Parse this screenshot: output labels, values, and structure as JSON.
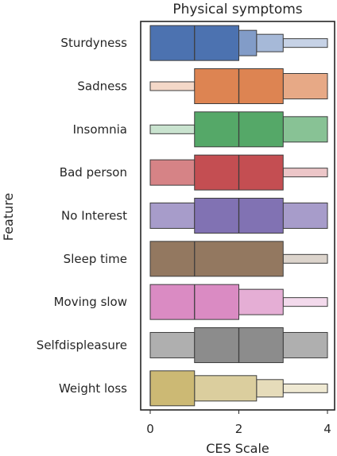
{
  "chart_data": {
    "type": "boxen",
    "title": "Physical symptoms",
    "xlabel": "CES Scale",
    "ylabel": "Feature",
    "xlim": [
      -0.2,
      4.2
    ],
    "xticks": [
      0,
      2,
      4
    ],
    "grid": false,
    "legend": "none",
    "categories": [
      "Sturdyness",
      "Sadness",
      "Insomnia",
      "Bad person",
      "No Interest",
      "Sleep time",
      "Moving slow",
      "Selfdispleasure",
      "Weight loss"
    ],
    "series": [
      {
        "category": "Sturdyness",
        "color": "#4c72b0",
        "median": 1,
        "levels": [
          {
            "low": 0,
            "high": 2,
            "shade": 0
          },
          {
            "low": 2,
            "high": 2.4,
            "shade": 1
          },
          {
            "low": 2.4,
            "high": 3,
            "shade": 2
          },
          {
            "low": 3,
            "high": 4,
            "shade": 3
          }
        ]
      },
      {
        "category": "Sadness",
        "color": "#dd8452",
        "median": 2,
        "levels": [
          {
            "low": 1,
            "high": 3,
            "shade": 0
          },
          {
            "low": 3,
            "high": 4,
            "shade": 1
          },
          {
            "low": 0,
            "high": 1,
            "shade": 3
          }
        ]
      },
      {
        "category": "Insomnia",
        "color": "#55a868",
        "median": 2,
        "levels": [
          {
            "low": 1,
            "high": 3,
            "shade": 0
          },
          {
            "low": 3,
            "high": 4,
            "shade": 1
          },
          {
            "low": 0,
            "high": 1,
            "shade": 3
          }
        ]
      },
      {
        "category": "Bad person",
        "color": "#c44e52",
        "median": 2,
        "levels": [
          {
            "low": 1,
            "high": 3,
            "shade": 0
          },
          {
            "low": 0,
            "high": 1,
            "shade": 1
          },
          {
            "low": 3,
            "high": 4,
            "shade": 3
          }
        ]
      },
      {
        "category": "No Interest",
        "color": "#8172b3",
        "median": 2,
        "levels": [
          {
            "low": 1,
            "high": 3,
            "shade": 0
          },
          {
            "low": 0,
            "high": 1,
            "shade": 1
          },
          {
            "low": 3,
            "high": 4,
            "shade": 1
          }
        ]
      },
      {
        "category": "Sleep time",
        "color": "#937860",
        "median": 1,
        "levels": [
          {
            "low": 0,
            "high": 3,
            "shade": 0
          },
          {
            "low": 3,
            "high": 4,
            "shade": 3
          }
        ]
      },
      {
        "category": "Moving slow",
        "color": "#da8bc3",
        "median": 1,
        "levels": [
          {
            "low": 0,
            "high": 2,
            "shade": 0
          },
          {
            "low": 2,
            "high": 3,
            "shade": 1
          },
          {
            "low": 3,
            "high": 4,
            "shade": 3
          }
        ]
      },
      {
        "category": "Selfdispleasure",
        "color": "#8c8c8c",
        "median": 2,
        "levels": [
          {
            "low": 1,
            "high": 3,
            "shade": 0
          },
          {
            "low": 0,
            "high": 1,
            "shade": 1
          },
          {
            "low": 3,
            "high": 4,
            "shade": 1
          }
        ]
      },
      {
        "category": "Weight loss",
        "color": "#ccb974",
        "median": 0,
        "levels": [
          {
            "low": 0,
            "high": 1,
            "shade": 0
          },
          {
            "low": 1,
            "high": 2.4,
            "shade": 1
          },
          {
            "low": 2.4,
            "high": 3,
            "shade": 2
          },
          {
            "low": 3,
            "high": 4,
            "shade": 3
          }
        ]
      }
    ]
  }
}
